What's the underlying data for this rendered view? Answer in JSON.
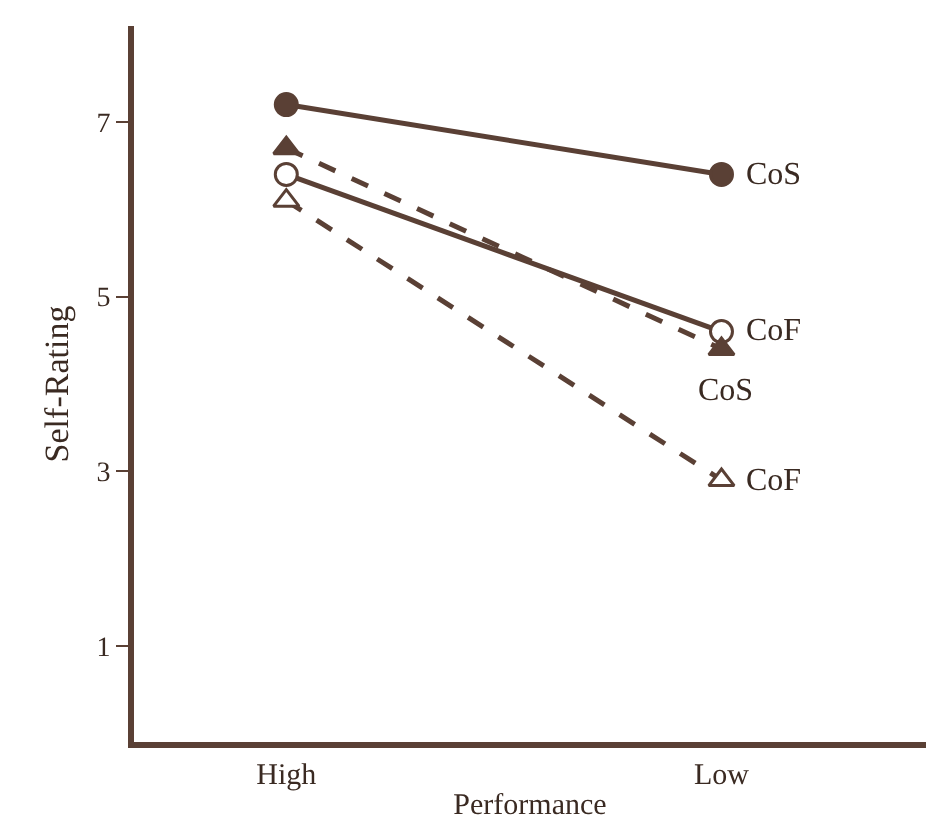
{
  "chart_data": {
    "type": "line",
    "xlabel": "Performance",
    "ylabel": "Self-Rating",
    "categories": [
      "High",
      "Low"
    ],
    "ylim": [
      -0.1,
      8.1
    ],
    "yticks": [
      1,
      3,
      5,
      7
    ],
    "grid": false,
    "legend": false,
    "series": [
      {
        "name": "CoS",
        "color": "#5a4035",
        "values": [
          7.2,
          6.4
        ],
        "marker": "circle",
        "line_style": "solid"
      },
      {
        "name": "CoF",
        "color": "#5a4035",
        "colors": [
          "#ffffff",
          "#ffffff"
        ],
        "values": [
          6.4,
          4.6
        ],
        "marker": "circle",
        "line_style": "solid"
      },
      {
        "name": "CoS",
        "color": "#5a4035",
        "values": [
          6.7,
          4.4
        ],
        "marker": "triangle",
        "line_style": "dashed"
      },
      {
        "name": "CoF",
        "color": "#5a4035",
        "colors": [
          "#ffffff",
          "#ffffff"
        ],
        "values": [
          6.1,
          2.9
        ],
        "marker": "triangle",
        "line_style": "dashed"
      }
    ]
  }
}
